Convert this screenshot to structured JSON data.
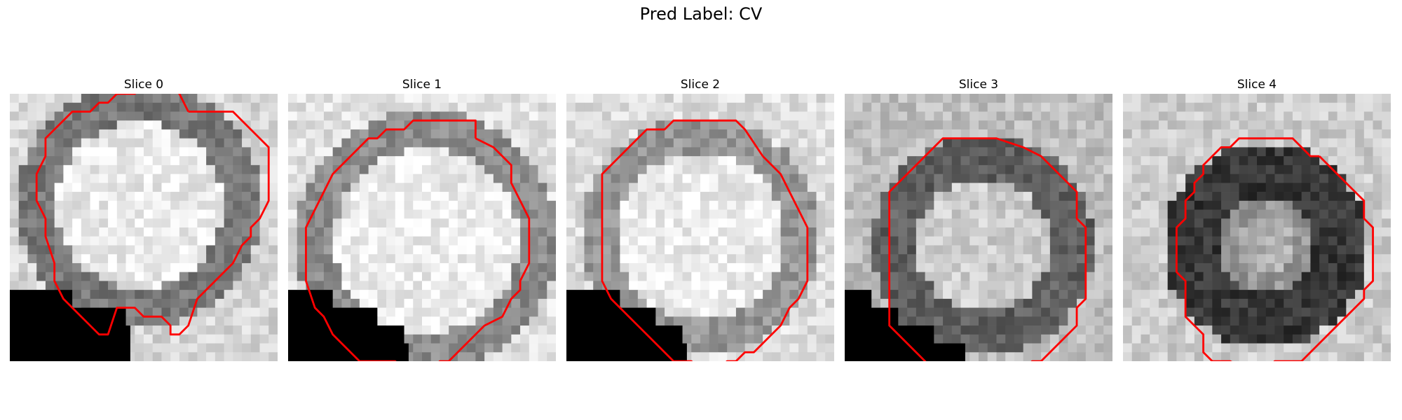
{
  "figure": {
    "title": "Pred Label: CV"
  },
  "colors": {
    "contour": "#ff0000",
    "background": "#ffffff"
  },
  "panels": [
    {
      "title": "Slice 0",
      "mask_steps": [
        [
          0,
          22
        ],
        [
          7,
          24
        ],
        [
          13,
          26
        ]
      ],
      "contour": [
        [
          5,
          1
        ],
        [
          10,
          1
        ],
        [
          11,
          2
        ],
        [
          14,
          5
        ],
        [
          14,
          11
        ],
        [
          13,
          13
        ],
        [
          12,
          14
        ],
        [
          12,
          15
        ],
        [
          11,
          16
        ],
        [
          10,
          18
        ],
        [
          9,
          19
        ],
        [
          8,
          20
        ],
        [
          7,
          21
        ],
        [
          6,
          22
        ],
        [
          5,
          25
        ],
        [
          4,
          26
        ],
        [
          3,
          26
        ],
        [
          3,
          25
        ],
        [
          2,
          24
        ],
        [
          0,
          24
        ],
        [
          -1,
          23
        ],
        [
          -3,
          23
        ],
        [
          -4,
          26
        ],
        [
          -5,
          26
        ],
        [
          -6,
          25
        ],
        [
          -7,
          24
        ],
        [
          -8,
          23
        ],
        [
          -9,
          22
        ],
        [
          -10,
          20
        ],
        [
          -10,
          18
        ],
        [
          -11,
          15
        ],
        [
          -11,
          13
        ],
        [
          -12,
          11
        ],
        [
          -12,
          8
        ],
        [
          -11,
          6
        ],
        [
          -11,
          4
        ],
        [
          -10,
          3
        ],
        [
          -9,
          2
        ],
        [
          -8,
          1
        ],
        [
          -6,
          1
        ],
        [
          -5,
          0
        ],
        [
          -4,
          0
        ],
        [
          -3,
          -1
        ],
        [
          -1,
          -1
        ],
        [
          0,
          -2
        ],
        [
          3,
          -2
        ],
        [
          4,
          -1
        ],
        [
          5,
          1
        ]
      ]
    },
    {
      "title": "Slice 1",
      "mask_steps": [
        [
          0,
          22
        ],
        [
          5,
          24
        ],
        [
          10,
          26
        ],
        [
          13,
          28
        ]
      ],
      "contour": [
        [
          6,
          4
        ],
        [
          8,
          5
        ],
        [
          9,
          6
        ],
        [
          10,
          7
        ],
        [
          10,
          9
        ],
        [
          11,
          11
        ],
        [
          12,
          13
        ],
        [
          12,
          18
        ],
        [
          11,
          20
        ],
        [
          11,
          21
        ],
        [
          10,
          22
        ],
        [
          9,
          24
        ],
        [
          7,
          25
        ],
        [
          6,
          26
        ],
        [
          5,
          27
        ],
        [
          4,
          28
        ],
        [
          3,
          29
        ],
        [
          2,
          29
        ],
        [
          1,
          30
        ],
        [
          -2,
          30
        ],
        [
          -3,
          29
        ],
        [
          -7,
          29
        ],
        [
          -8,
          28
        ],
        [
          -9,
          27
        ],
        [
          -10,
          26
        ],
        [
          -11,
          24
        ],
        [
          -12,
          23
        ],
        [
          -13,
          20
        ],
        [
          -13,
          14
        ],
        [
          -12,
          12
        ],
        [
          -11,
          10
        ],
        [
          -10,
          8
        ],
        [
          -9,
          7
        ],
        [
          -8,
          6
        ],
        [
          -7,
          5
        ],
        [
          -6,
          4
        ],
        [
          -5,
          4
        ],
        [
          -4,
          3
        ],
        [
          -2,
          3
        ],
        [
          -1,
          2
        ],
        [
          6,
          2
        ],
        [
          6,
          4
        ]
      ]
    },
    {
      "title": "Slice 2",
      "mask_steps": [
        [
          0,
          22
        ],
        [
          6,
          24
        ],
        [
          10,
          26
        ],
        [
          13,
          28
        ]
      ],
      "contour": [
        [
          7,
          6
        ],
        [
          9,
          8
        ],
        [
          10,
          10
        ],
        [
          11,
          12
        ],
        [
          12,
          14
        ],
        [
          12,
          20
        ],
        [
          11,
          22
        ],
        [
          10,
          23
        ],
        [
          9,
          25
        ],
        [
          8,
          26
        ],
        [
          7,
          27
        ],
        [
          6,
          28
        ],
        [
          5,
          28
        ],
        [
          4,
          29
        ],
        [
          3,
          29
        ],
        [
          2,
          30
        ],
        [
          1,
          31
        ],
        [
          0,
          30
        ],
        [
          -1,
          29
        ],
        [
          -3,
          29
        ],
        [
          -4,
          28
        ],
        [
          -5,
          27
        ],
        [
          -6,
          26
        ],
        [
          -7,
          25
        ],
        [
          -8,
          24
        ],
        [
          -9,
          23
        ],
        [
          -10,
          22
        ],
        [
          -11,
          20
        ],
        [
          -11,
          8
        ],
        [
          -10,
          7
        ],
        [
          -9,
          6
        ],
        [
          -8,
          5
        ],
        [
          -7,
          4
        ],
        [
          -6,
          3
        ],
        [
          -4,
          3
        ],
        [
          -3,
          2
        ],
        [
          2,
          2
        ],
        [
          4,
          2
        ],
        [
          5,
          3
        ],
        [
          7,
          6
        ]
      ]
    },
    {
      "title": "Slice 3",
      "mask_steps": [
        [
          0,
          22
        ],
        [
          3,
          24
        ],
        [
          6,
          26
        ],
        [
          10,
          28
        ]
      ],
      "contour": [
        [
          5,
          5
        ],
        [
          7,
          6
        ],
        [
          8,
          7
        ],
        [
          9,
          8
        ],
        [
          10,
          9
        ],
        [
          11,
          10
        ],
        [
          11,
          13
        ],
        [
          12,
          14
        ],
        [
          12,
          22
        ],
        [
          11,
          23
        ],
        [
          11,
          25
        ],
        [
          10,
          26
        ],
        [
          9,
          27
        ],
        [
          8,
          28
        ],
        [
          7,
          29
        ],
        [
          6,
          29
        ],
        [
          5,
          30
        ],
        [
          2,
          30
        ],
        [
          1,
          31
        ],
        [
          -2,
          31
        ],
        [
          -3,
          30
        ],
        [
          -5,
          30
        ],
        [
          -6,
          29
        ],
        [
          -7,
          28
        ],
        [
          -8,
          27
        ],
        [
          -9,
          26
        ],
        [
          -10,
          25
        ],
        [
          -10,
          10
        ],
        [
          -9,
          9
        ],
        [
          -8,
          8
        ],
        [
          -7,
          7
        ],
        [
          -6,
          6
        ],
        [
          -5,
          5
        ],
        [
          -4,
          4
        ],
        [
          2,
          4
        ],
        [
          5,
          5
        ]
      ]
    },
    {
      "title": "Slice 4",
      "mask_steps": [],
      "contour": [
        [
          7,
          6
        ],
        [
          8,
          7
        ],
        [
          9,
          8
        ],
        [
          10,
          9
        ],
        [
          11,
          10
        ],
        [
          12,
          11
        ],
        [
          12,
          13
        ],
        [
          13,
          14
        ],
        [
          13,
          20
        ],
        [
          12,
          21
        ],
        [
          12,
          22
        ],
        [
          11,
          23
        ],
        [
          10,
          24
        ],
        [
          9,
          25
        ],
        [
          8,
          26
        ],
        [
          7,
          27
        ],
        [
          6,
          28
        ],
        [
          5,
          29
        ],
        [
          2,
          29
        ],
        [
          1,
          30
        ],
        [
          -1,
          30
        ],
        [
          -3,
          29
        ],
        [
          -5,
          29
        ],
        [
          -6,
          28
        ],
        [
          -6,
          26
        ],
        [
          -7,
          25
        ],
        [
          -8,
          24
        ],
        [
          -8,
          20
        ],
        [
          -9,
          19
        ],
        [
          -9,
          14
        ],
        [
          -8,
          13
        ],
        [
          -8,
          11
        ],
        [
          -7,
          10
        ],
        [
          -7,
          9
        ],
        [
          -6,
          8
        ],
        [
          -6,
          7
        ],
        [
          -5,
          6
        ],
        [
          -4,
          5
        ],
        [
          -3,
          5
        ],
        [
          -2,
          4
        ],
        [
          -1,
          4
        ],
        [
          0,
          4
        ],
        [
          2,
          4
        ],
        [
          4,
          4
        ],
        [
          5,
          5
        ],
        [
          6,
          6
        ],
        [
          7,
          6
        ]
      ]
    }
  ]
}
